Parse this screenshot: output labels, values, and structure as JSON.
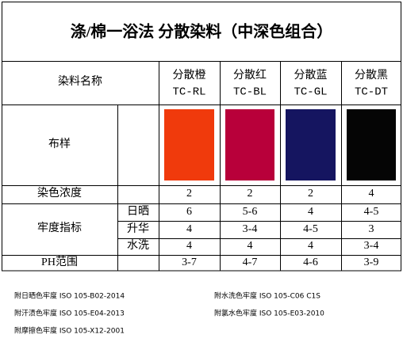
{
  "title": "涤/棉一浴法 分散染料（中深色组合）",
  "table": {
    "header_label": "染料名称",
    "dyes": [
      {
        "name": "分散橙",
        "code": "TC-RL",
        "color": "#f03a0c"
      },
      {
        "name": "分散红",
        "code": "TC-BL",
        "color": "#b8003a"
      },
      {
        "name": "分散蓝",
        "code": "TC-GL",
        "color": "#151560"
      },
      {
        "name": "分散黑",
        "code": "TC-DT",
        "color": "#050505"
      }
    ],
    "swatch_label": "布样",
    "concentration": {
      "label": "染色浓度",
      "values": [
        2,
        2,
        2,
        4
      ]
    },
    "fastness": {
      "label": "牢度指标",
      "rows": [
        {
          "label": "日晒",
          "values": [
            "6",
            "5-6",
            "4",
            "4-5"
          ]
        },
        {
          "label": "升华",
          "values": [
            "4",
            "3-4",
            "4-5",
            "3"
          ]
        },
        {
          "label": "水洗",
          "values": [
            "4",
            "4",
            "4",
            "3-4"
          ]
        }
      ]
    },
    "ph": {
      "label": "PH范围",
      "values": [
        "3-7",
        "4-7",
        "4-6",
        "3-9"
      ]
    }
  },
  "notes": [
    "附日晒色牢度 ISO 105-B02-2014",
    "附水洗色牢度 ISO 105-C06 C1S",
    "附汗渍色牢度 ISO 105-E04-2013",
    "附氯水色牢度 ISO 105-E03-2010",
    "附摩擦色牢度 ISO 105-X12-2001"
  ]
}
